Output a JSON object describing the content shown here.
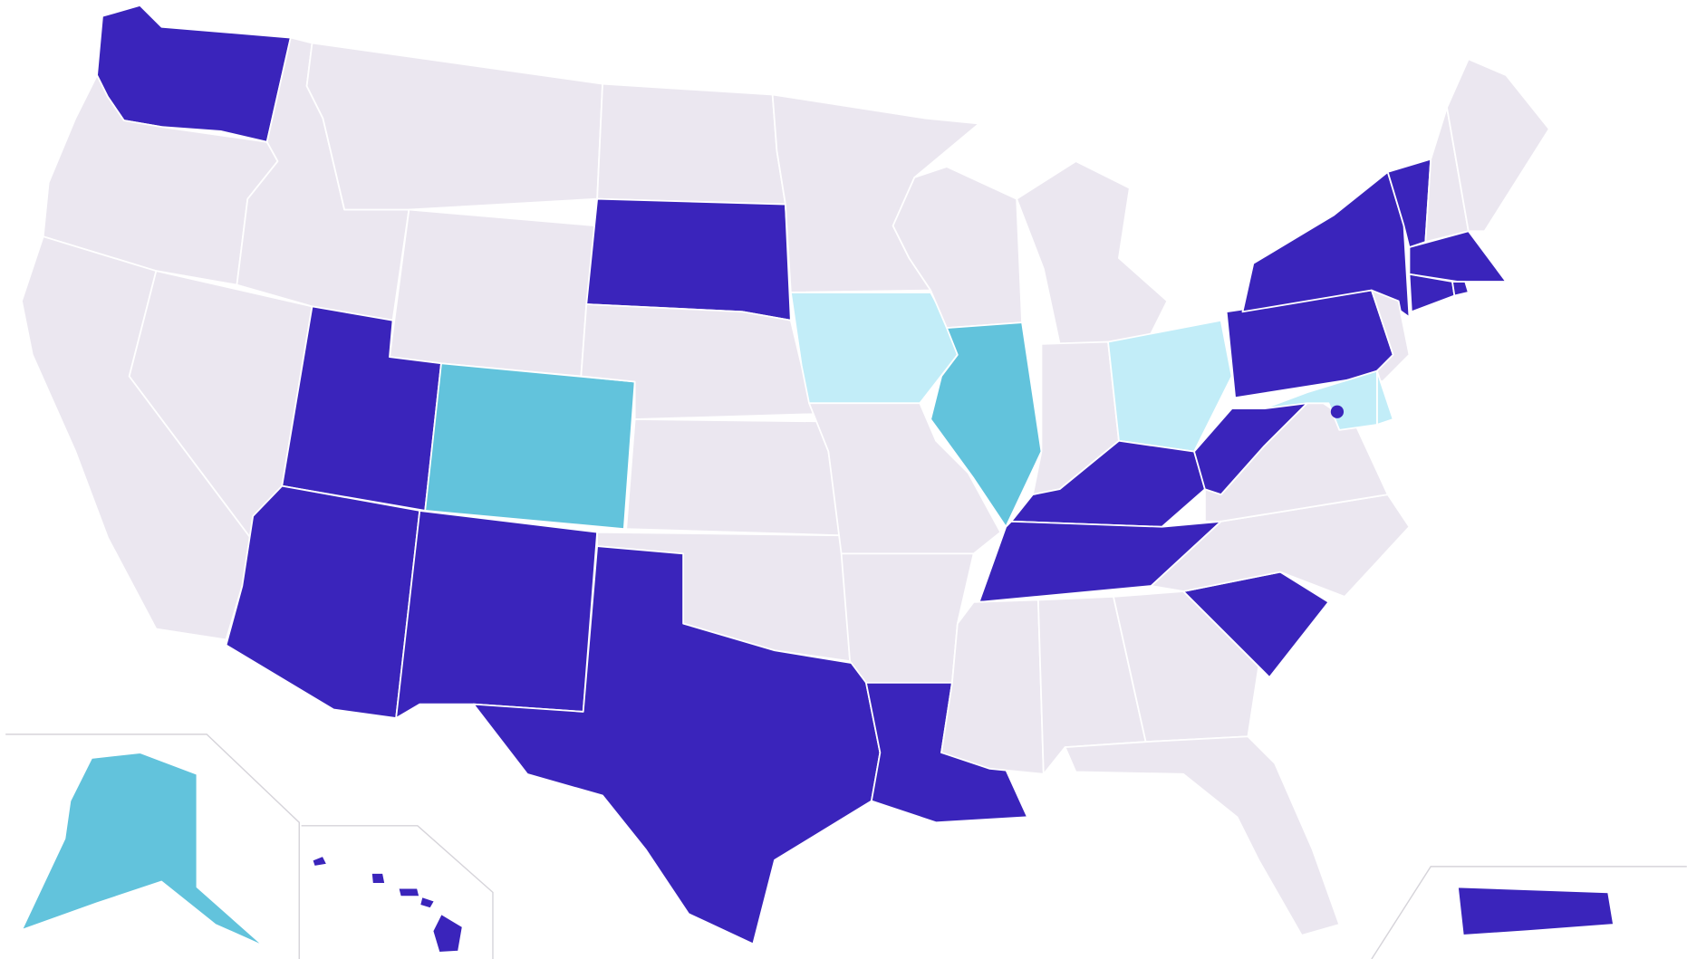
{
  "regions": [
    {
      "color": "#3a24bb"
    },
    {
      "color": "#ebe7f0"
    },
    {
      "color": "#ebe7f0"
    },
    {
      "color": "#ebe7f0"
    },
    {
      "color": "#ebe7f0"
    },
    {
      "color": "#ebe7f0"
    },
    {
      "color": "#ebe7f0"
    },
    {
      "color": "#3a24bb"
    },
    {
      "color": "#62c3dc"
    },
    {
      "color": "#3a24bb"
    },
    {
      "color": "#3a24bb"
    },
    {
      "color": "#ebe7f0"
    },
    {
      "color": "#3a24bb"
    },
    {
      "color": "#ebe7f0"
    },
    {
      "color": "#ebe7f0"
    },
    {
      "color": "#ebe7f0"
    },
    {
      "color": "#3a24bb"
    },
    {
      "color": "#ebe7f0"
    },
    {
      "color": "#c2edf8"
    },
    {
      "color": "#ebe7f0"
    },
    {
      "color": "#ebe7f0"
    },
    {
      "color": "#3a24bb"
    },
    {
      "color": "#ebe7f0"
    },
    {
      "color": "#62c3dc"
    },
    {
      "color": "#ebe7f0"
    },
    {
      "color": "#ebe7f0"
    },
    {
      "color": "#c2edf8"
    },
    {
      "color": "#3a24bb"
    },
    {
      "color": "#3a24bb"
    },
    {
      "color": "#ebe7f0"
    },
    {
      "color": "#ebe7f0"
    },
    {
      "color": "#ebe7f0"
    },
    {
      "color": "#ebe7f0"
    },
    {
      "color": "#3a24bb"
    },
    {
      "color": "#ebe7f0"
    },
    {
      "color": "#ebe7f0"
    },
    {
      "color": "#3a24bb"
    },
    {
      "color": "#3a24bb"
    },
    {
      "color": "#3a24bb"
    },
    {
      "color": "#3a24bb"
    },
    {
      "color": "#ebe7f0"
    },
    {
      "color": "#ebe7f0"
    },
    {
      "color": "#3a24bb"
    },
    {
      "color": "#3a24bb"
    },
    {
      "color": "#3a24bb"
    },
    {
      "color": "#ebe7f0"
    },
    {
      "color": "#c2edf8"
    },
    {
      "color": "#c2edf8"
    },
    {
      "color": "#62c3dc"
    },
    {
      "color": "#3a24bb"
    },
    {
      "color": "#3a24bb"
    },
    {
      "color": "#3a24bb"
    },
    {
      "color": "#3a24bb"
    },
    {
      "color": "#3a24bb"
    },
    {
      "color": "#3a24bb"
    }
  ]
}
